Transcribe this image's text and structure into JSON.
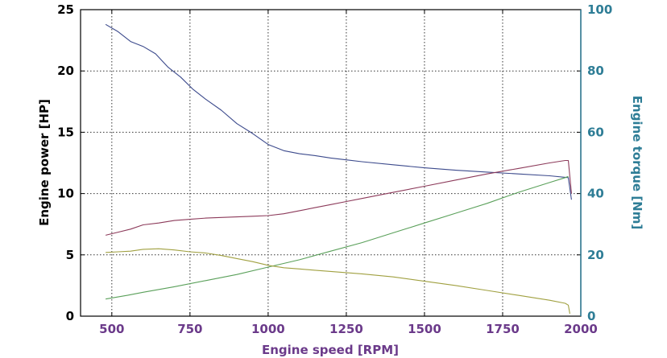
{
  "chart_data": {
    "type": "line",
    "xlabel": "Engine speed [RPM]",
    "ylabel_left": "Engine power [HP]",
    "ylabel_right": "Engine torque [Nm]",
    "xlim": [
      400,
      2000
    ],
    "ylim_left": [
      0,
      25
    ],
    "ylim_right": [
      0,
      100
    ],
    "x_ticks": [
      500,
      750,
      1000,
      1250,
      1500,
      1750,
      2000
    ],
    "y_left_ticks": [
      0,
      5,
      10,
      15,
      20,
      25
    ],
    "y_right_ticks": [
      0,
      20,
      40,
      60,
      80,
      100
    ],
    "grid": true,
    "colors": {
      "left_axis": "#000000",
      "right_axis": "#2e7d96",
      "x_axis": "#6b3a8a",
      "frame": "#000000"
    },
    "series": [
      {
        "axis": "left",
        "color": "#3c4a8c",
        "x": [
          480,
          520,
          560,
          600,
          640,
          680,
          720,
          760,
          800,
          850,
          900,
          950,
          1000,
          1050,
          1100,
          1150,
          1200,
          1250,
          1300,
          1400,
          1500,
          1600,
          1700,
          1800,
          1900,
          1960,
          1970
        ],
        "y": [
          23.8,
          23.2,
          22.4,
          22.0,
          21.4,
          20.3,
          19.5,
          18.5,
          17.7,
          16.8,
          15.7,
          14.9,
          14.0,
          13.5,
          13.25,
          13.1,
          12.9,
          12.75,
          12.6,
          12.35,
          12.1,
          11.9,
          11.75,
          11.6,
          11.45,
          11.3,
          9.5
        ]
      },
      {
        "axis": "left",
        "color": "#8c3a5a",
        "x": [
          480,
          520,
          560,
          600,
          650,
          700,
          750,
          800,
          850,
          900,
          950,
          1000,
          1050,
          1100,
          1150,
          1200,
          1250,
          1300,
          1400,
          1500,
          1600,
          1700,
          1800,
          1900,
          1950,
          1960,
          1970
        ],
        "y": [
          6.6,
          6.85,
          7.1,
          7.45,
          7.6,
          7.8,
          7.9,
          8.0,
          8.05,
          8.1,
          8.15,
          8.2,
          8.35,
          8.6,
          8.85,
          9.1,
          9.35,
          9.6,
          10.1,
          10.6,
          11.1,
          11.6,
          12.05,
          12.5,
          12.7,
          12.7,
          10.0
        ]
      },
      {
        "axis": "left",
        "color": "#5aa05a",
        "x": [
          480,
          550,
          600,
          700,
          800,
          900,
          1000,
          1100,
          1200,
          1300,
          1400,
          1500,
          1600,
          1700,
          1800,
          1900,
          1950,
          1960
        ],
        "y": [
          1.4,
          1.7,
          1.95,
          2.4,
          2.9,
          3.4,
          4.0,
          4.6,
          5.3,
          6.0,
          6.8,
          7.6,
          8.4,
          9.2,
          10.1,
          10.9,
          11.3,
          11.4
        ]
      },
      {
        "axis": "left",
        "color": "#a0a040",
        "x": [
          480,
          520,
          560,
          600,
          650,
          700,
          750,
          800,
          850,
          900,
          950,
          1000,
          1050,
          1100,
          1150,
          1200,
          1300,
          1400,
          1500,
          1600,
          1700,
          1800,
          1900,
          1950,
          1960,
          1965
        ],
        "y": [
          5.2,
          5.25,
          5.3,
          5.45,
          5.5,
          5.4,
          5.25,
          5.15,
          4.95,
          4.7,
          4.45,
          4.15,
          3.95,
          3.85,
          3.75,
          3.65,
          3.45,
          3.2,
          2.85,
          2.5,
          2.1,
          1.7,
          1.3,
          1.05,
          0.9,
          0.2
        ]
      }
    ]
  }
}
